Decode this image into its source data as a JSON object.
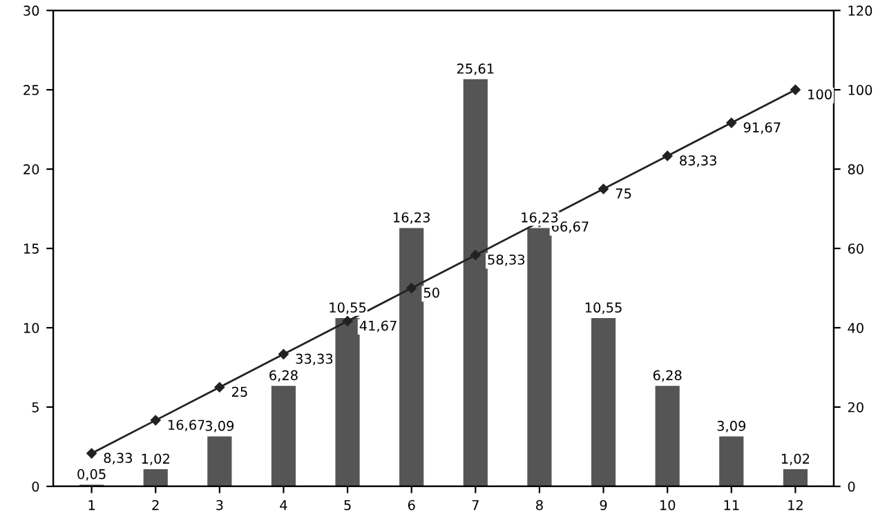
{
  "chart_data": {
    "type": "bar",
    "categories": [
      "1",
      "2",
      "3",
      "4",
      "5",
      "6",
      "7",
      "8",
      "9",
      "10",
      "11",
      "12"
    ],
    "ylim": [
      0,
      30
    ],
    "yticks": [
      0,
      5,
      10,
      15,
      20,
      25,
      30
    ],
    "y2lim": [
      0,
      120
    ],
    "y2ticks": [
      0,
      20,
      40,
      60,
      80,
      100,
      120
    ],
    "grid": false,
    "legend": false,
    "series": [
      {
        "color": "#555555",
        "values": [
          0.05,
          1.02,
          3.09,
          6.28,
          10.55,
          16.23,
          25.61,
          16.23,
          10.55,
          6.28,
          3.09,
          1.02
        ],
        "value_labels": [
          "0,05",
          "1,02",
          "3,09",
          "6,28",
          "10,55",
          "16,23",
          "25,61",
          "16,23",
          "10,55",
          "6,28",
          "3,09",
          "1,02"
        ]
      },
      {
        "type": "line",
        "axis": "y2",
        "color": "#222222",
        "marker": "diamond",
        "line_style": "solid",
        "values": [
          8.33,
          16.67,
          25,
          33.33,
          41.67,
          50,
          58.33,
          66.67,
          75,
          83.33,
          91.67,
          100
        ],
        "value_labels": [
          "8,33",
          "16,67",
          "25",
          "33,33",
          "41,67",
          "50",
          "58,33",
          "66,67",
          "75",
          "83,33",
          "91,67",
          "100"
        ]
      }
    ]
  }
}
